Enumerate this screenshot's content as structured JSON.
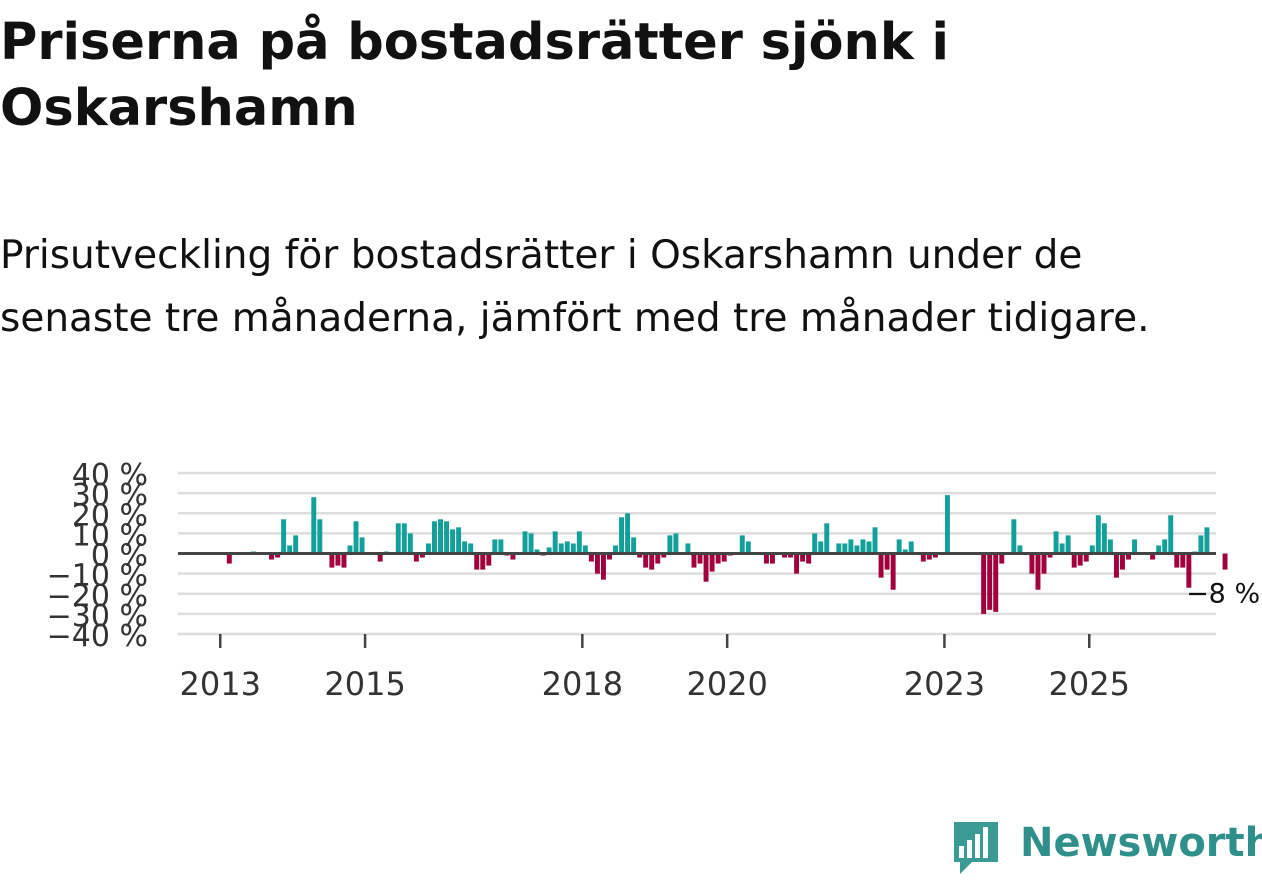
{
  "title": "Priserna på bostadsrätter sjönk i Oskarshamn",
  "subtitle": "Prisutveckling för bostadsrätter i Oskarshamn under de senaste tre månaderna, jämfört med tre månader tidigare.",
  "brand": {
    "name": "Newsworthy",
    "color": "#3a9a94"
  },
  "colors": {
    "positive": "#13a09a",
    "negative": "#a0003e",
    "grid": "#dddddd",
    "zero": "#444444"
  },
  "chart_data": {
    "type": "bar",
    "title": "Priserna på bostadsrätter sjönk i Oskarshamn",
    "xlabel": "",
    "ylabel": "",
    "ylim": [
      -40,
      40
    ],
    "y_ticks": [
      40,
      30,
      20,
      10,
      0,
      -10,
      -20,
      -30,
      -40
    ],
    "y_tick_labels": [
      "40 %",
      "30 %",
      "20 %",
      "10 %",
      "0 %",
      "−10 %",
      "−20 %",
      "−30 %",
      "−40 %"
    ],
    "x_ticks": [
      "2013",
      "2015",
      "2018",
      "2020",
      "2023",
      "2025"
    ],
    "x_range": [
      "2012-06",
      "2026-10"
    ],
    "x_start": "2012-06",
    "grid": true,
    "annotation": {
      "label": "−8 %",
      "value": -8
    },
    "values": [
      0,
      0,
      0,
      0,
      0,
      0,
      0,
      0,
      -5,
      0,
      0,
      0,
      1,
      0,
      0,
      -3,
      -2,
      17,
      4,
      9,
      0,
      0,
      28,
      17,
      0,
      -7,
      -6,
      -7,
      4,
      16,
      8,
      0,
      0,
      -4,
      1,
      0,
      15,
      15,
      10,
      -4,
      -2,
      5,
      16,
      17,
      16,
      12,
      13,
      6,
      5,
      -8,
      -8,
      -6,
      7,
      7,
      -1,
      -3,
      0,
      11,
      10,
      2,
      -1,
      3,
      11,
      5,
      6,
      5,
      11,
      4,
      -4,
      -10,
      -13,
      -3,
      4,
      18,
      20,
      8,
      -2,
      -7,
      -8,
      -5,
      -2,
      9,
      10,
      0,
      5,
      -7,
      -5,
      -14,
      -9,
      -5,
      -4,
      -1,
      0,
      9,
      6,
      0,
      0,
      -5,
      -5,
      0,
      -2,
      -2,
      -10,
      -4,
      -5,
      10,
      6,
      15,
      0,
      5,
      5,
      7,
      4,
      7,
      6,
      13,
      -12,
      -8,
      -18,
      7,
      2,
      6,
      0,
      -4,
      -3,
      -2,
      0,
      29,
      0,
      0,
      0,
      0,
      0,
      -30,
      -28,
      -29,
      -5,
      0,
      17,
      4,
      0,
      -10,
      -18,
      -10,
      -2,
      11,
      5,
      9,
      -7,
      -6,
      -4,
      4,
      19,
      15,
      7,
      -12,
      -8,
      -3,
      7,
      0,
      0,
      -3,
      4,
      7,
      19,
      -7,
      -7,
      -17,
      1,
      9,
      13,
      0,
      0,
      -8
    ]
  }
}
